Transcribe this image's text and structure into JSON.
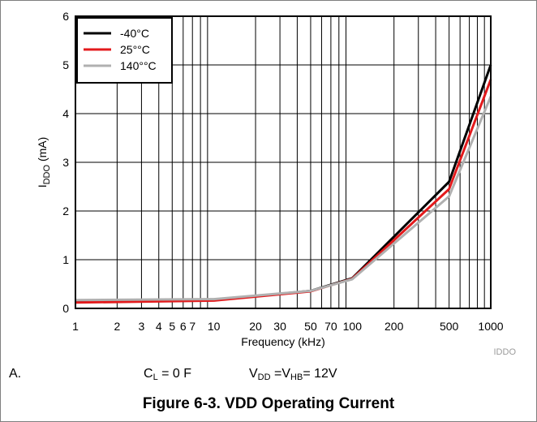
{
  "chart_data": {
    "type": "line",
    "x_scale": "log",
    "x_ticks": [
      1,
      2,
      3,
      4,
      5,
      6,
      7,
      10,
      20,
      30,
      50,
      70,
      100,
      200,
      500,
      1000
    ],
    "x_tick_labels": [
      "1",
      "2",
      "3",
      "4",
      "5",
      "6",
      "7",
      "10",
      "20",
      "30",
      "50",
      "70",
      "100",
      "200",
      "500",
      "1000"
    ],
    "xlim": [
      1,
      1000
    ],
    "y_ticks": [
      0,
      1,
      2,
      3,
      4,
      5,
      6
    ],
    "ylim": [
      0,
      6
    ],
    "xlabel": "Frequency (kHz)",
    "ylabel": {
      "main": "I",
      "sub": "DDO",
      "unit": " (mA)"
    },
    "grid": true,
    "legend_position": "top-left",
    "series": [
      {
        "name": "-40°C",
        "color": "#000000",
        "x": [
          1,
          10,
          50,
          100,
          500,
          1000
        ],
        "y": [
          0.14,
          0.17,
          0.36,
          0.62,
          2.6,
          5.0
        ]
      },
      {
        "name": "25°°C",
        "color": "#e31a1c",
        "x": [
          1,
          10,
          50,
          100,
          500,
          1000
        ],
        "y": [
          0.12,
          0.16,
          0.35,
          0.61,
          2.45,
          4.7
        ]
      },
      {
        "name": "140°°C",
        "color": "#b0b0b0",
        "x": [
          1,
          10,
          50,
          100,
          500,
          1000
        ],
        "y": [
          0.17,
          0.19,
          0.36,
          0.6,
          2.3,
          4.35
        ]
      }
    ]
  },
  "figure_id": "IDDO",
  "notes": {
    "label": "A.",
    "cl": {
      "main": "C",
      "sub": "L",
      "rest": " = 0 F"
    },
    "vdd": {
      "main1": "V",
      "sub1": "DD",
      "mid": " =V",
      "sub2": "HB",
      "rest": "= 12V"
    }
  },
  "caption": "Figure 6-3. VDD Operating Current"
}
